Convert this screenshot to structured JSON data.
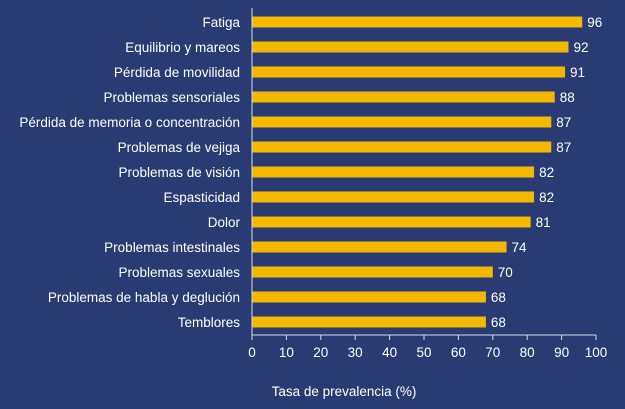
{
  "colors": {
    "background": "#293b72",
    "bar": "#f5b800",
    "axis": "#d8dce8",
    "text": "#ffffff"
  },
  "chart_data": {
    "type": "bar",
    "orientation": "horizontal",
    "title": "",
    "xlabel": "Tasa de prevalencia (%)",
    "ylabel": "",
    "xlim": [
      0,
      100
    ],
    "xticks": [
      0,
      10,
      20,
      30,
      40,
      50,
      60,
      70,
      80,
      90,
      100
    ],
    "grid": false,
    "categories": [
      "Fatiga",
      "Equilibrio y mareos",
      "Pérdida de movilidad",
      "Problemas sensoriales",
      "Pérdida de memoria o concentración",
      "Problemas de vejiga",
      "Problemas de visión",
      "Espasticidad",
      "Dolor",
      "Problemas intestinales",
      "Problemas sexuales",
      "Problemas de habla y deglución",
      "Temblores"
    ],
    "values": [
      96,
      92,
      91,
      88,
      87,
      87,
      82,
      82,
      81,
      74,
      70,
      68,
      68
    ]
  }
}
